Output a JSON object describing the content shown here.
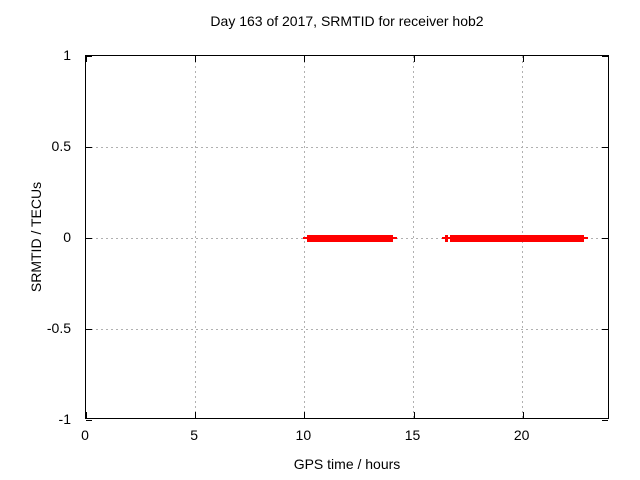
{
  "chart_data": {
    "type": "scatter",
    "title": "Day 163 of 2017, SRMTID for receiver hob2",
    "xlabel": "GPS time / hours",
    "ylabel": "SRMTID / TECUs",
    "xlim": [
      0,
      24
    ],
    "ylim": [
      -1,
      1
    ],
    "xticks": {
      "values": [
        0,
        5,
        10,
        15,
        20
      ],
      "labels": [
        "0",
        "5",
        "10",
        "15",
        "20"
      ]
    },
    "yticks": {
      "values": [
        1,
        0.5,
        0,
        -0.5,
        -1
      ],
      "labels": [
        "1",
        "0.5",
        "0",
        "-0.5",
        "-1"
      ]
    },
    "grid": {
      "enabled": true,
      "style": "dashed"
    },
    "legend": "none",
    "marker": "plus",
    "colors": {
      "series": "#ff0000",
      "border": "#000000",
      "grid": "#b0b0b0",
      "text": "#000000",
      "background": "#ffffff"
    },
    "series": [
      {
        "name": "SRMTID",
        "y_value": 0,
        "segments": [
          {
            "x_start": 10.1,
            "x_end": 14.05,
            "y": 0
          },
          {
            "x_start": 16.65,
            "x_end": 22.8,
            "y": 0
          }
        ],
        "isolated_points": [
          {
            "x": 16.5,
            "y": 0
          }
        ]
      }
    ]
  }
}
